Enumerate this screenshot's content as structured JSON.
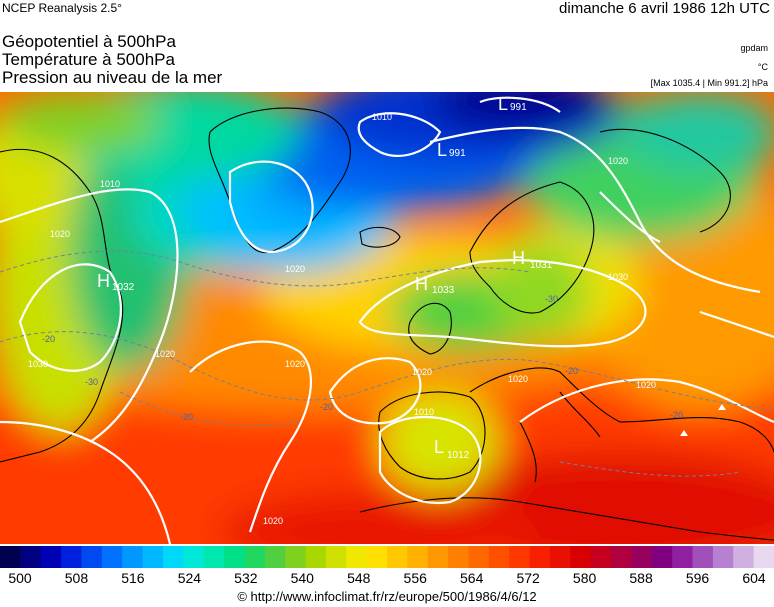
{
  "header": {
    "source": "NCEP Reanalysis 2.5°",
    "date": "dimanche 6 avril 1986 12h UTC"
  },
  "titles": {
    "line1": "Géopotentiel à 500hPa",
    "line2": "Température à 500hPa",
    "line3": "Pression au niveau de la mer"
  },
  "units": {
    "geopotential": "gpdam",
    "temperature": "°C",
    "pressure": "[Max 1035.4 | Min 991.2] hPa"
  },
  "map": {
    "pressure_centers": [
      {
        "type": "L",
        "value": "991"
      },
      {
        "type": "L",
        "value": "991"
      },
      {
        "type": "H",
        "value": "1032"
      },
      {
        "type": "H",
        "value": "1031"
      },
      {
        "type": "H",
        "value": "1033"
      },
      {
        "type": "L",
        "value": "1012"
      }
    ],
    "isobar_labels": [
      "1010",
      "1010",
      "1020",
      "1020",
      "1020",
      "1030",
      "1020",
      "1020",
      "1030",
      "1020",
      "1020",
      "1020",
      "1010",
      "1020"
    ],
    "temperature_labels": [
      "-20",
      "-30",
      "-20",
      "-20",
      "-20",
      "-20",
      "-30"
    ]
  },
  "colorbar": {
    "ticks": [
      "500",
      "508",
      "516",
      "524",
      "532",
      "540",
      "548",
      "556",
      "564",
      "572",
      "580",
      "588",
      "596",
      "604"
    ],
    "colors": [
      "#000050",
      "#000080",
      "#0000b4",
      "#0020e0",
      "#0048f0",
      "#0070ff",
      "#0098ff",
      "#00b8ff",
      "#00d8f8",
      "#00e8d8",
      "#00e8b0",
      "#00e088",
      "#20d860",
      "#50d040",
      "#80d020",
      "#a8d800",
      "#d0e000",
      "#f0e800",
      "#ffe000",
      "#ffc800",
      "#ffb000",
      "#ff9800",
      "#ff8000",
      "#ff6800",
      "#ff5000",
      "#ff3800",
      "#f82000",
      "#e81000",
      "#d80000",
      "#c80020",
      "#b00040",
      "#980060",
      "#800080",
      "#9020a0",
      "#a050b8",
      "#b880d0",
      "#d0b0e0",
      "#e8d8f0"
    ]
  },
  "footer": {
    "url": "© http://www.infoclimat.fr/rz/europe/500/1986/4/6/12"
  }
}
